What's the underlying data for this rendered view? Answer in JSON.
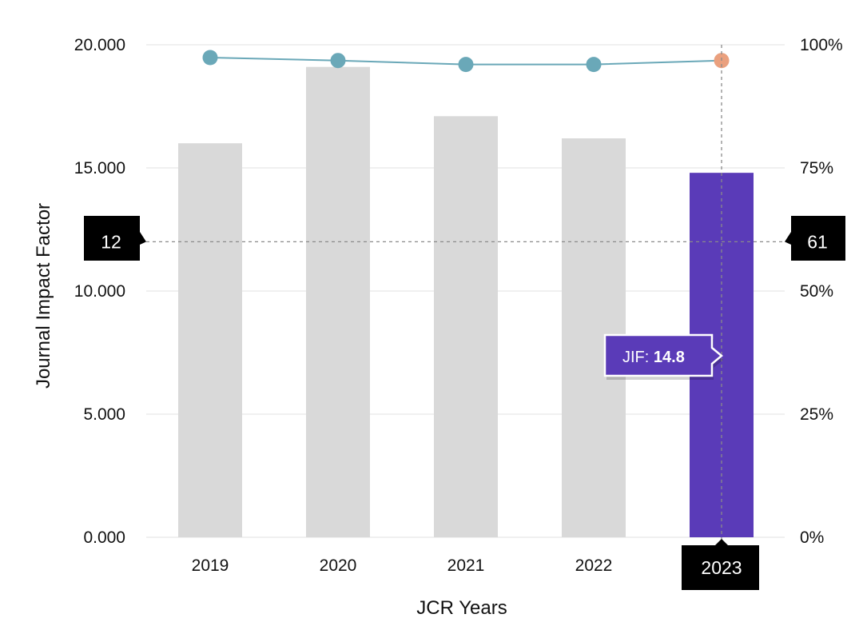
{
  "chart_data": {
    "type": "bar",
    "xlabel": "JCR Years",
    "ylabel": "Journal Impact Factor",
    "categories": [
      "2019",
      "2020",
      "2021",
      "2022",
      "2023"
    ],
    "ylim": [
      0,
      20
    ],
    "y_ticks": [
      "0.000",
      "5.000",
      "10.000",
      "15.000",
      "20.000"
    ],
    "y2lim": [
      0,
      100
    ],
    "y2_ticks": [
      "0%",
      "25%",
      "50%",
      "75%",
      "100%"
    ],
    "grid": true,
    "series": [
      {
        "type": "bar",
        "values": [
          16.0,
          19.1,
          17.1,
          16.2,
          14.8
        ]
      },
      {
        "type": "line",
        "axis": "right",
        "values": [
          97.4,
          96.8,
          96.0,
          96.0,
          96.8
        ]
      }
    ],
    "highlight": {
      "category": "2023",
      "bar_color": "#5a3bb8",
      "point_color": "#eaa07e"
    },
    "colors": {
      "bar": "#d9d9d9",
      "line": "#6aa8b8",
      "grid": "#e6e6e6",
      "crosshair": "#8a8a8a",
      "label_bg": "#000000"
    },
    "crosshair": {
      "y_value": 12,
      "y_label": "12",
      "y2_label": "61",
      "x_label": "2023"
    },
    "tooltip": {
      "prefix": "JIF: ",
      "value": "14.8"
    }
  }
}
